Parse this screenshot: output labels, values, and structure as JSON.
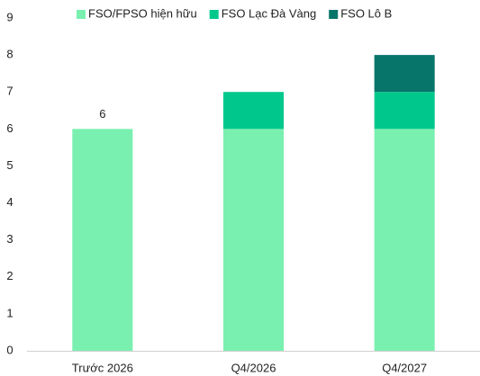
{
  "chart_data": {
    "type": "stacked_bar",
    "categories": [
      "Trước 2026",
      "Q4/2026",
      "Q4/2027"
    ],
    "series": [
      {
        "name": "FSO/FPSO hiện hữu",
        "color": "#7af0b0",
        "values": [
          6,
          6,
          6
        ],
        "value_labels": [
          "6",
          null,
          null
        ]
      },
      {
        "name": "FSO Lạc Đà Vàng",
        "color": "#00c88c",
        "values": [
          0,
          1,
          1
        ]
      },
      {
        "name": "FSO Lô B",
        "color": "#07756a",
        "values": [
          0,
          0,
          1
        ]
      }
    ],
    "ylim": [
      0,
      9
    ],
    "yticks": [
      0,
      1,
      2,
      3,
      4,
      5,
      6,
      7,
      8,
      9
    ],
    "grid": false,
    "legend": "top"
  }
}
